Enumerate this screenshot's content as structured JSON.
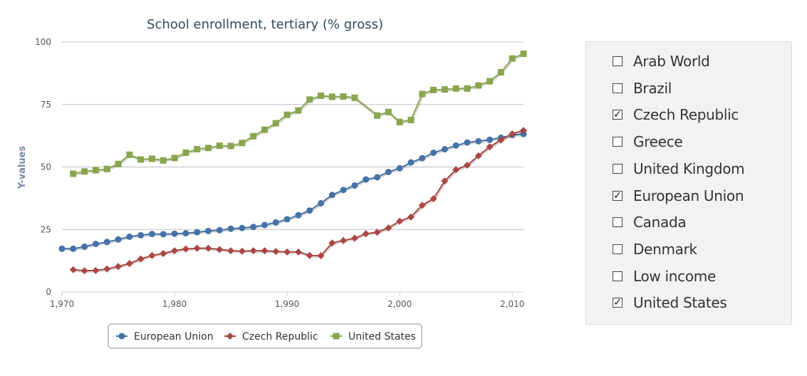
{
  "chart_data": {
    "type": "line",
    "title": "School enrollment, tertiary (% gross)",
    "ylabel": "Y-values",
    "xlabel": "",
    "xlim": [
      1970,
      2011
    ],
    "ylim": [
      0,
      100
    ],
    "x_ticks": [
      1970,
      1980,
      1990,
      2000,
      2010
    ],
    "x_tick_labels": [
      "1,970",
      "1,980",
      "1,990",
      "2,000",
      "2,010"
    ],
    "y_ticks": [
      0,
      25,
      50,
      75,
      100
    ],
    "y_tick_labels": [
      "0",
      "25",
      "50",
      "75",
      "100"
    ],
    "legend_position": "bottom-center",
    "series": [
      {
        "name": "European Union",
        "color": "#4572a7",
        "marker": "circle",
        "x": [
          1970,
          1971,
          1972,
          1973,
          1974,
          1975,
          1976,
          1977,
          1978,
          1979,
          1980,
          1981,
          1982,
          1983,
          1984,
          1985,
          1986,
          1987,
          1988,
          1989,
          1990,
          1991,
          1992,
          1993,
          1994,
          1995,
          1996,
          1997,
          1998,
          1999,
          2000,
          2001,
          2002,
          2003,
          2004,
          2005,
          2006,
          2007,
          2008,
          2009,
          2010,
          2011
        ],
        "values": [
          17.3,
          17.3,
          18.1,
          19.2,
          20.0,
          21.0,
          22.1,
          22.7,
          23.2,
          23.1,
          23.3,
          23.5,
          23.9,
          24.4,
          24.7,
          25.3,
          25.6,
          26.0,
          26.8,
          27.8,
          29.1,
          30.7,
          32.6,
          35.5,
          38.8,
          40.8,
          42.6,
          45.0,
          45.9,
          48.0,
          49.5,
          51.8,
          53.5,
          55.7,
          57.1,
          58.6,
          59.8,
          60.3,
          60.9,
          61.7,
          62.8,
          63.2
        ]
      },
      {
        "name": "Czech Republic",
        "color": "#aa4643",
        "marker": "diamond",
        "x": [
          1971,
          1972,
          1973,
          1974,
          1975,
          1976,
          1977,
          1978,
          1979,
          1980,
          1981,
          1982,
          1983,
          1984,
          1985,
          1986,
          1987,
          1988,
          1989,
          1990,
          1991,
          1992,
          1993,
          1994,
          1995,
          1996,
          1997,
          1998,
          1999,
          2000,
          2001,
          2002,
          2003,
          2004,
          2005,
          2006,
          2007,
          2008,
          2009,
          2010,
          2011
        ],
        "values": [
          8.9,
          8.5,
          8.6,
          9.2,
          10.2,
          11.4,
          13.2,
          14.6,
          15.4,
          16.5,
          17.2,
          17.5,
          17.5,
          17.0,
          16.5,
          16.3,
          16.5,
          16.5,
          16.2,
          16.0,
          16.0,
          14.6,
          14.5,
          19.6,
          20.6,
          21.5,
          23.3,
          23.9,
          25.6,
          28.3,
          30.0,
          34.7,
          37.3,
          44.4,
          48.9,
          50.7,
          54.5,
          58.1,
          60.8,
          63.3,
          64.6
        ]
      },
      {
        "name": "United States",
        "color": "#89a54e",
        "marker": "square",
        "x": [
          1971,
          1972,
          1973,
          1974,
          1975,
          1976,
          1977,
          1978,
          1979,
          1980,
          1981,
          1982,
          1983,
          1984,
          1985,
          1986,
          1987,
          1988,
          1989,
          1990,
          1991,
          1992,
          1993,
          1994,
          1995,
          1996,
          1998,
          1999,
          2000,
          2001,
          2002,
          2003,
          2004,
          2005,
          2006,
          2007,
          2008,
          2009,
          2010,
          2011
        ],
        "values": [
          47.3,
          48.2,
          48.7,
          49.2,
          51.2,
          54.9,
          53.0,
          53.3,
          52.6,
          53.6,
          55.7,
          57.1,
          57.6,
          58.5,
          58.4,
          59.6,
          62.3,
          64.9,
          67.5,
          70.9,
          72.6,
          77.0,
          78.5,
          78.1,
          78.2,
          77.7,
          70.6,
          72.0,
          68.0,
          68.8,
          79.2,
          80.8,
          81.0,
          81.4,
          81.4,
          82.6,
          84.3,
          87.9,
          93.4,
          95.3
        ]
      }
    ]
  },
  "panel": {
    "options": [
      {
        "label": "Arab World",
        "checked": false
      },
      {
        "label": "Brazil",
        "checked": false
      },
      {
        "label": "Czech Republic",
        "checked": true
      },
      {
        "label": "Greece",
        "checked": false
      },
      {
        "label": "United Kingdom",
        "checked": false
      },
      {
        "label": "European Union",
        "checked": true
      },
      {
        "label": "Canada",
        "checked": false
      },
      {
        "label": "Denmark",
        "checked": false
      },
      {
        "label": "Low income",
        "checked": false
      },
      {
        "label": "United States",
        "checked": true
      }
    ]
  }
}
